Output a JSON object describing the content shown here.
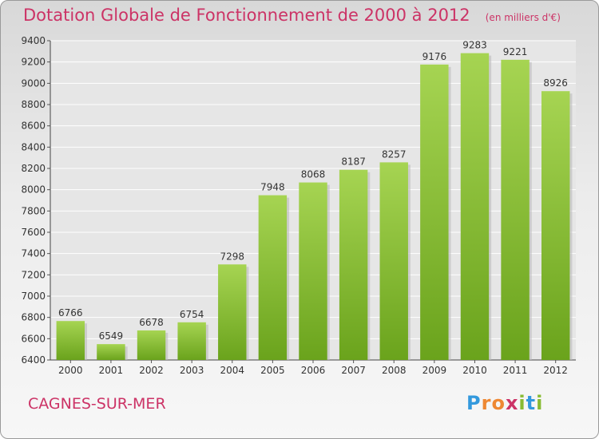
{
  "chart_data": {
    "type": "bar",
    "title": "Dotation Globale de Fonctionnement de 2000 à 2012",
    "subtitle": "(en milliers d'€)",
    "categories": [
      "2000",
      "2001",
      "2002",
      "2003",
      "2004",
      "2005",
      "2006",
      "2007",
      "2008",
      "2009",
      "2010",
      "2011",
      "2012"
    ],
    "values": [
      6766,
      6549,
      6678,
      6754,
      7298,
      7948,
      8068,
      8187,
      8257,
      9176,
      9283,
      9221,
      8926
    ],
    "ylim": [
      6400,
      9400
    ],
    "yticks": [
      6400,
      6600,
      6800,
      7000,
      7200,
      7400,
      7600,
      7800,
      8000,
      8200,
      8400,
      8600,
      8800,
      9000,
      9200,
      9400
    ],
    "grid": true,
    "bar_color": "#8cc43c"
  },
  "commune": "CAGNES-SUR-MER",
  "brand": {
    "letters": [
      "P",
      "r",
      "o",
      "x",
      "i",
      "t",
      "i"
    ],
    "colors": [
      "#3399dd",
      "#ee8833",
      "#ee8833",
      "#cc3366",
      "#88bb33",
      "#3399dd",
      "#88bb33"
    ]
  }
}
